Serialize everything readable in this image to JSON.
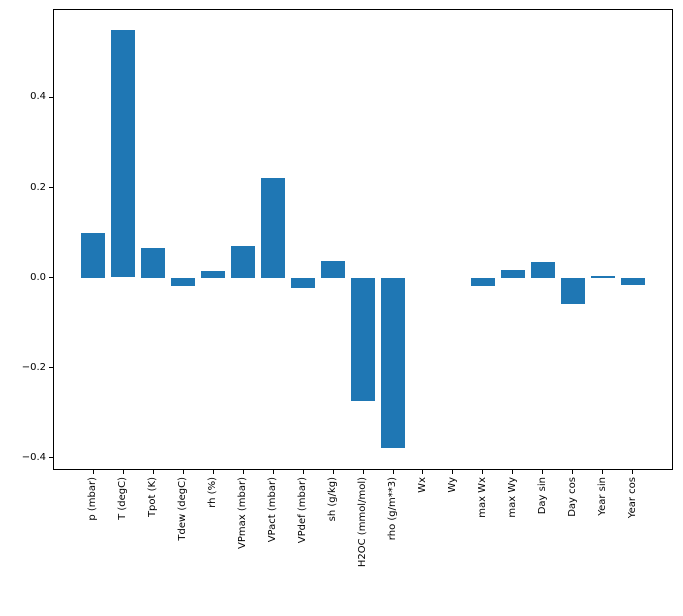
{
  "figure": {
    "background": "#ffffff",
    "bar_color": "#1f77b4",
    "axis_color": "#000000",
    "text_color": "#000000"
  },
  "chart_data": {
    "type": "bar",
    "title": "",
    "xlabel": "",
    "ylabel": "",
    "categories": [
      "p (mbar)",
      "T (degC)",
      "Tpot (K)",
      "Tdew (degC)",
      "rh (%)",
      "VPmax (mbar)",
      "VPact (mbar)",
      "VPdef (mbar)",
      "sh (g/kg)",
      "H2OC (mmol/mol)",
      "rho (g/m**3)",
      "Wx",
      "Wy",
      "max Wx",
      "max Wy",
      "Day sin",
      "Day cos",
      "Year sin",
      "Year cos"
    ],
    "values": [
      0.1,
      0.55,
      0.065,
      -0.018,
      0.014,
      0.071,
      0.222,
      -0.023,
      0.037,
      -0.274,
      -0.379,
      0.0,
      0.0,
      -0.019,
      0.016,
      0.035,
      -0.058,
      0.004,
      -0.016
    ],
    "ylim": [
      -0.427,
      0.596
    ],
    "yticks": [
      -0.4,
      -0.2,
      0.0,
      0.2,
      0.4
    ],
    "ytick_labels": [
      "−0.4",
      "−0.2",
      "0.0",
      "0.2",
      "0.4"
    ],
    "xtick_rotation_deg": 90,
    "grid": false,
    "legend_position": "none"
  }
}
